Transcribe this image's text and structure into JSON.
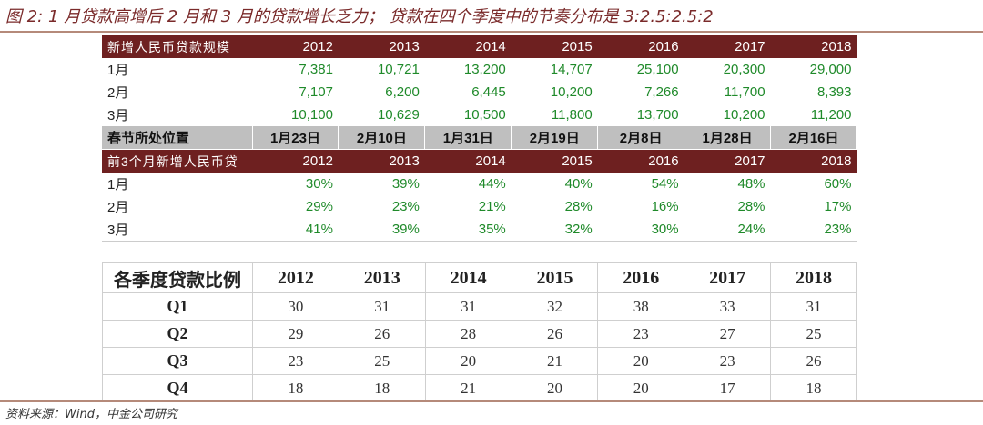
{
  "title": "图 2: 1 月贷款高增后 2 月和 3 月的贷款增长乏力；  贷款在四个季度中的节奏分布是 3:2.5:2.5:2",
  "source": "资料来源：Wind，中金公司研究",
  "upper_table": {
    "section1_header": [
      "新增人民币贷款规模",
      "2012",
      "2013",
      "2014",
      "2015",
      "2016",
      "2017",
      "2018"
    ],
    "section1_rows": [
      [
        "1月",
        "7,381",
        "10,721",
        "13,200",
        "14,707",
        "25,100",
        "20,300",
        "29,000"
      ],
      [
        "2月",
        "7,107",
        "6,200",
        "6,445",
        "10,200",
        "7,266",
        "11,700",
        "8,393"
      ],
      [
        "3月",
        "10,100",
        "10,629",
        "10,500",
        "11,800",
        "13,700",
        "10,200",
        "11,200"
      ]
    ],
    "spring_row": [
      "春节所处位置",
      "1月23日",
      "2月10日",
      "1月31日",
      "2月19日",
      "2月8日",
      "1月28日",
      "2月16日"
    ],
    "section2_header": [
      "前3个月新增人民币贷",
      "2012",
      "2013",
      "2014",
      "2015",
      "2016",
      "2017",
      "2018"
    ],
    "section2_rows": [
      [
        "1月",
        "30%",
        "39%",
        "44%",
        "40%",
        "54%",
        "48%",
        "60%"
      ],
      [
        "2月",
        "29%",
        "23%",
        "21%",
        "28%",
        "16%",
        "28%",
        "17%"
      ],
      [
        "3月",
        "41%",
        "39%",
        "35%",
        "32%",
        "30%",
        "24%",
        "23%"
      ]
    ]
  },
  "lower_table": {
    "header": [
      "各季度贷款比例",
      "2012",
      "2013",
      "2014",
      "2015",
      "2016",
      "2017",
      "2018"
    ],
    "rows": [
      [
        "Q1",
        "30",
        "31",
        "31",
        "32",
        "38",
        "33",
        "31"
      ],
      [
        "Q2",
        "29",
        "26",
        "28",
        "26",
        "23",
        "27",
        "25"
      ],
      [
        "Q3",
        "23",
        "25",
        "20",
        "21",
        "20",
        "23",
        "26"
      ],
      [
        "Q4",
        "18",
        "18",
        "21",
        "20",
        "20",
        "17",
        "18"
      ]
    ]
  }
}
